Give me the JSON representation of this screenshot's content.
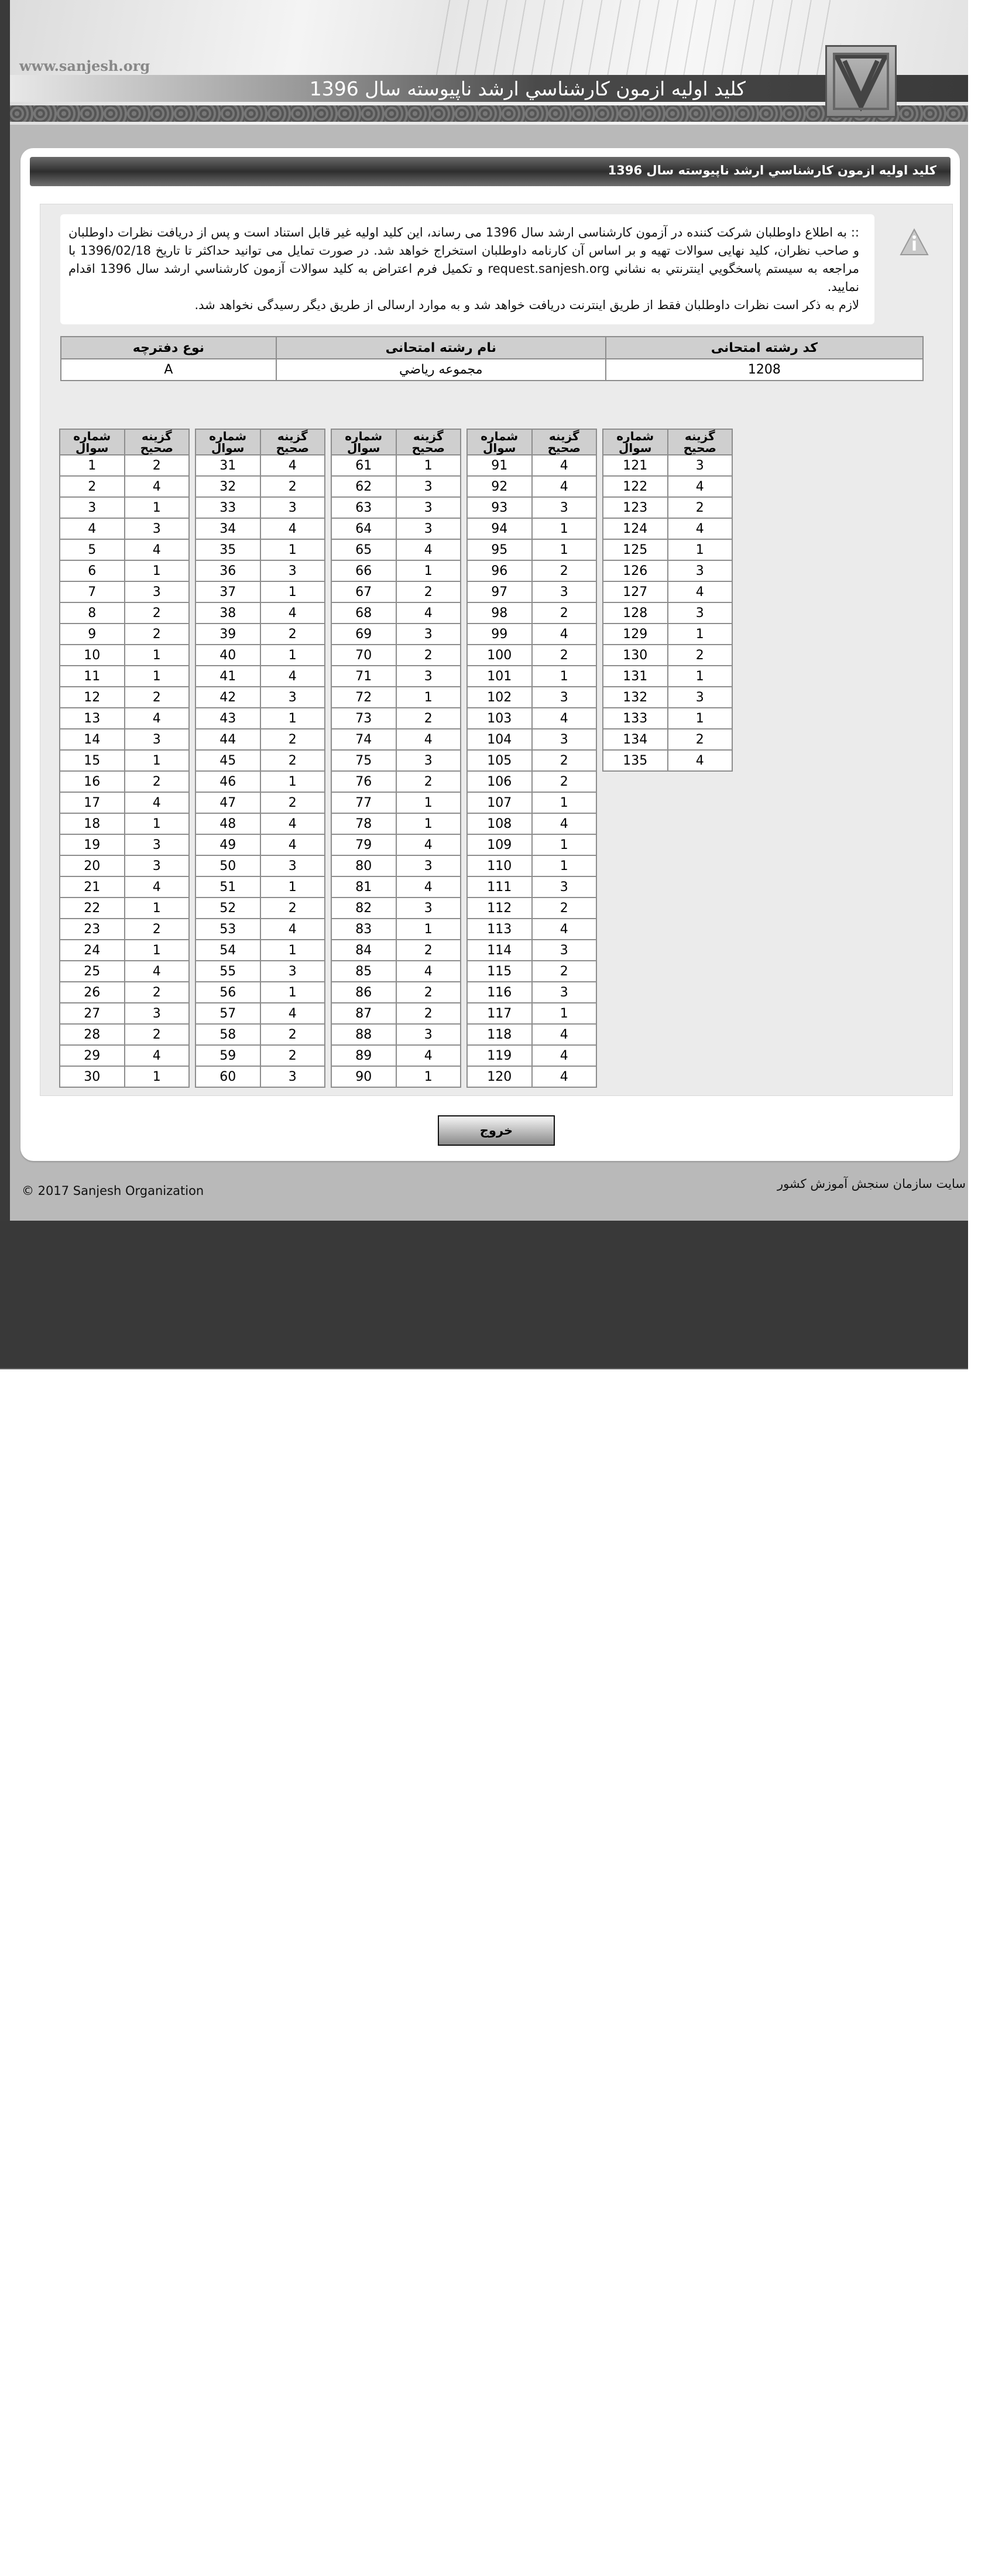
{
  "header": {
    "site_url": "www.sanjesh.org",
    "title": "کلید اولیه ازمون کارشناسي ارشد ناپيوسته سال 1396"
  },
  "card": {
    "title": "کلید اولیه ازمون کارشناسي ارشد ناپيوسته سال 1396"
  },
  "notice": {
    "icon": "warning-triangle-icon",
    "paragraph1": ":: به اطلاع داوطلبان شرکت کننده در آزمون کارشناسی ارشد سال 1396 می رساند، این کلید اولیه غیر قابل استناد است و پس از دریافت نظرات داوطلبان و صاحب نظران، کلید نهایی سوالات تهیه و بر اساس آن کارنامه داوطلبان استخراج خواهد شد. در صورت تمایل می توانید حداکثر تا تاریخ 1396/02/18 با مراجعه به سیستم پاسخگويي اينترنتي به نشاني request.sanjesh.org و تکمیل فرم اعتراض به کلید سوالات آزمون کارشناسي ارشد سال 1396 اقدام نمایید.",
    "paragraph2": "لازم به ذکر است نظرات داوطلبان فقط از طریق اینترنت دریافت خواهد شد و به موارد ارسالی از طریق دیگر رسیدگی نخواهد شد."
  },
  "exam_info": {
    "headers": [
      "کد رشته امتحانی",
      "نام رشته امتحانی",
      "نوع دفترچه"
    ],
    "values": [
      "1208",
      "مجموعه رياضي",
      "A"
    ]
  },
  "answer_key": {
    "col_question": "شماره سوال",
    "col_answer": "گزینه صحیح",
    "tables": [
      {
        "start": 1,
        "answers": [
          2,
          4,
          1,
          3,
          4,
          1,
          3,
          2,
          2,
          1,
          1,
          2,
          4,
          3,
          1,
          2,
          4,
          1,
          3,
          3,
          4,
          1,
          2,
          1,
          4,
          2,
          3,
          2,
          4,
          1
        ]
      },
      {
        "start": 31,
        "answers": [
          4,
          2,
          3,
          4,
          1,
          3,
          1,
          4,
          2,
          1,
          4,
          3,
          1,
          2,
          2,
          1,
          2,
          4,
          4,
          3,
          1,
          2,
          4,
          1,
          3,
          1,
          4,
          2,
          2,
          3
        ]
      },
      {
        "start": 61,
        "answers": [
          1,
          3,
          3,
          3,
          4,
          1,
          2,
          4,
          3,
          2,
          3,
          1,
          2,
          4,
          3,
          2,
          1,
          1,
          4,
          3,
          4,
          3,
          1,
          2,
          4,
          2,
          2,
          3,
          4,
          1
        ]
      },
      {
        "start": 91,
        "answers": [
          4,
          4,
          3,
          1,
          1,
          2,
          3,
          2,
          4,
          2,
          1,
          3,
          4,
          3,
          2,
          2,
          1,
          4,
          1,
          1,
          3,
          2,
          4,
          3,
          2,
          3,
          1,
          4,
          4,
          4
        ]
      },
      {
        "start": 121,
        "answers": [
          3,
          4,
          2,
          4,
          1,
          3,
          4,
          3,
          1,
          2,
          1,
          3,
          1,
          2,
          4
        ]
      }
    ]
  },
  "exit_button": "خروج",
  "footer": {
    "link": "سایت سازمان سنجش آموزش کشور",
    "copyright": "© 2017 Sanjesh Organization"
  }
}
